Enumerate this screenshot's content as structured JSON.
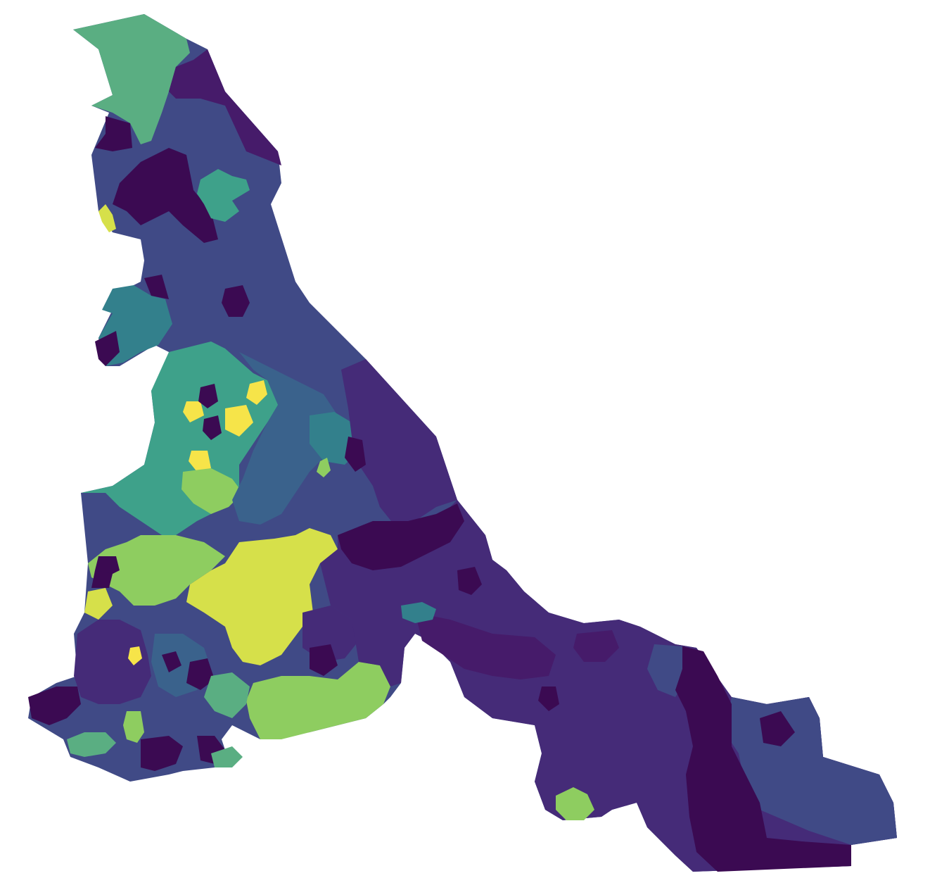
{
  "map": {
    "type": "choropleth",
    "colormap": "viridis",
    "legend": false,
    "axes": false,
    "palette": {
      "c0": "#3b0a52",
      "c1": "#461b6a",
      "c2": "#452b78",
      "c3": "#404a86",
      "c4": "#3a628c",
      "c5": "#33808c",
      "c6": "#3ea18a",
      "c7": "#5aae82",
      "c8": "#8ecd60",
      "c9": "#d6e04a",
      "c10": "#f6e449"
    }
  }
}
